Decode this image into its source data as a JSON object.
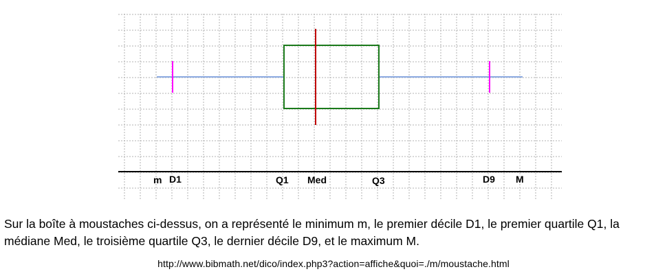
{
  "diagram": {
    "type": "boxplot",
    "labels": {
      "m": "m",
      "d1": "D1",
      "q1": "Q1",
      "med": "Med",
      "q3": "Q3",
      "d9": "D9",
      "M": "M"
    },
    "colors": {
      "grid": "#b0b0b0",
      "whisker": "#8aa8e0",
      "box": "#1a7a1a",
      "median": "#c00000",
      "decile": "#ff00ff",
      "axis": "#000000"
    }
  },
  "caption": "Sur la boîte à moustaches ci-dessus, on a représenté le minimum m, le premier décile D1, le premier quartile Q1, la médiane Med, le troisième quartile Q3, le dernier décile D9, et le maximum M.",
  "source_url": "http://www.bibmath.net/dico/index.php3?action=affiche&quoi=./m/moustache.html"
}
